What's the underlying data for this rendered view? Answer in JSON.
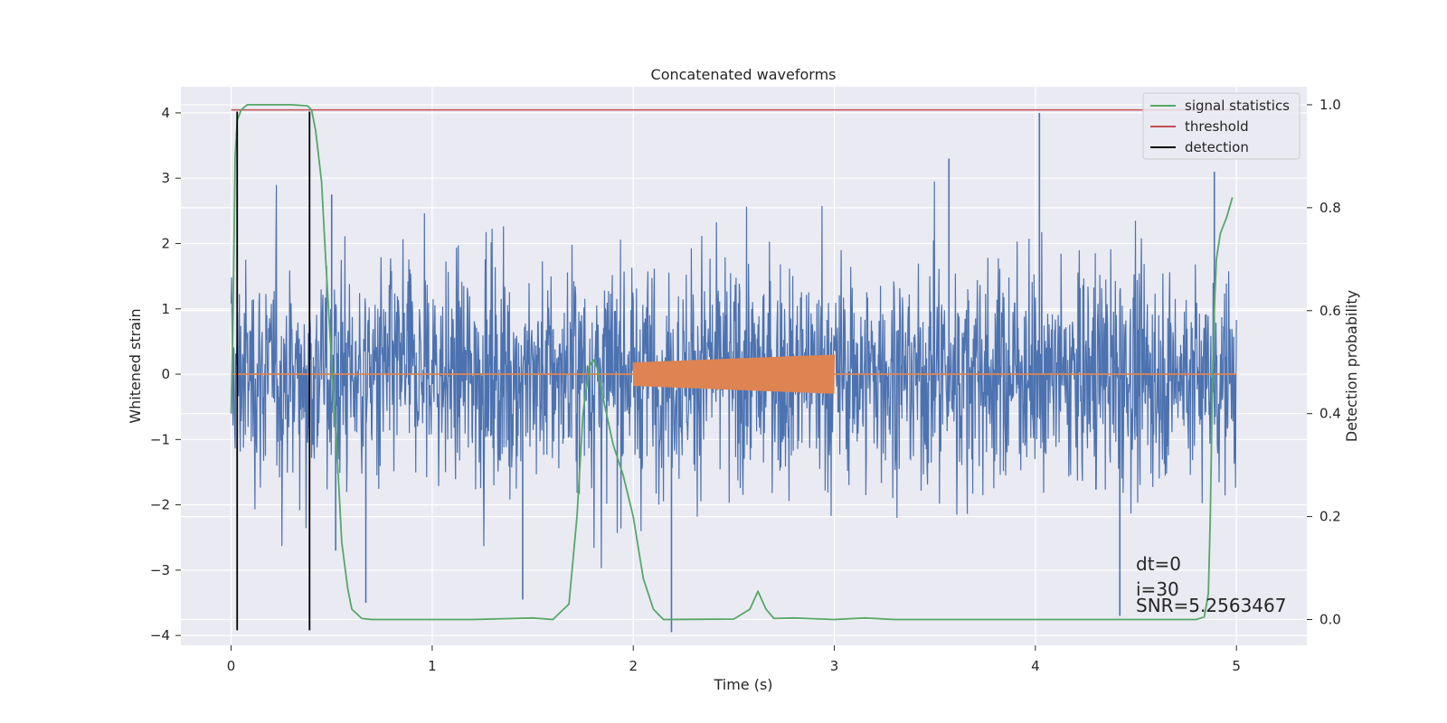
{
  "chart_data": {
    "type": "line",
    "title": "Concatenated waveforms",
    "xlabel": "Time (s)",
    "ylabel": "Whitened strain",
    "y2label": "Detection probability",
    "xlim": [
      -0.25,
      5.35
    ],
    "ylim": [
      -4.15,
      4.4
    ],
    "y2lim": [
      -0.05,
      1.035
    ],
    "xticks": [
      0,
      1,
      2,
      3,
      4,
      5
    ],
    "yticks": [
      4,
      3,
      2,
      1,
      0,
      -1,
      -2,
      -3,
      -4
    ],
    "y2ticks": [
      1.0,
      0.8,
      0.6,
      0.4,
      0.2,
      0.0
    ],
    "grid": true,
    "legend_position": "top-right",
    "legend": [
      {
        "label": "signal statistics",
        "color": "#55a868"
      },
      {
        "label": "threshold",
        "color": "#c44e52"
      },
      {
        "label": "detection",
        "color": "#000000"
      }
    ],
    "series": [
      {
        "key": "strain",
        "axis": "left",
        "kind": "noise",
        "color": "#4c72b0",
        "x_range": [
          0,
          5
        ],
        "typical_sigma": 1.0,
        "notable_spikes": [
          [
            0.5,
            2.75
          ],
          [
            0.52,
            -2.7
          ],
          [
            0.67,
            -3.5
          ],
          [
            1.45,
            -3.45
          ],
          [
            2.19,
            -3.95
          ],
          [
            3.57,
            3.3
          ],
          [
            4.02,
            4.0
          ],
          [
            4.42,
            -3.7
          ],
          [
            4.89,
            3.1
          ]
        ]
      },
      {
        "key": "injected_signal",
        "axis": "left",
        "kind": "chirp",
        "color": "#dd8452",
        "x_range": [
          2.0,
          3.0
        ],
        "amplitude": [
          0.18,
          0.3
        ]
      },
      {
        "key": "signal_statistics",
        "name": "signal statistics",
        "axis": "right",
        "color": "#55a868",
        "x": [
          0.0,
          0.01,
          0.02,
          0.03,
          0.05,
          0.08,
          0.15,
          0.3,
          0.38,
          0.4,
          0.42,
          0.45,
          0.47,
          0.5,
          0.53,
          0.55,
          0.58,
          0.6,
          0.65,
          0.7,
          0.9,
          1.2,
          1.5,
          1.6,
          1.68,
          1.72,
          1.75,
          1.78,
          1.8,
          1.82,
          1.85,
          1.9,
          1.95,
          2.0,
          2.05,
          2.1,
          2.15,
          2.5,
          2.58,
          2.62,
          2.66,
          2.7,
          2.8,
          3.0,
          3.15,
          3.3,
          4.8,
          4.84,
          4.86,
          4.87,
          4.88,
          4.89,
          4.9,
          4.92,
          4.95,
          4.98
        ],
        "y": [
          0.4,
          0.6,
          0.9,
          0.97,
          0.99,
          1.0,
          1.0,
          1.0,
          0.998,
          0.99,
          0.95,
          0.85,
          0.7,
          0.5,
          0.3,
          0.15,
          0.06,
          0.02,
          0.002,
          0.0,
          0.0,
          0.0,
          0.003,
          0.0,
          0.03,
          0.2,
          0.4,
          0.49,
          0.505,
          0.49,
          0.43,
          0.34,
          0.28,
          0.2,
          0.08,
          0.02,
          0.0,
          0.001,
          0.02,
          0.055,
          0.02,
          0.002,
          0.003,
          0.0,
          0.003,
          0.0,
          0.0,
          0.005,
          0.05,
          0.2,
          0.45,
          0.6,
          0.7,
          0.75,
          0.78,
          0.82
        ]
      },
      {
        "key": "threshold",
        "name": "threshold",
        "axis": "right",
        "color": "#c44e52",
        "x": [
          0,
          5
        ],
        "y": [
          0.99,
          0.99
        ]
      },
      {
        "key": "detection",
        "name": "detection",
        "axis": "left",
        "color": "#000000",
        "x": [
          0.03,
          0.39
        ],
        "y_range": [
          -3.92,
          4.02
        ]
      }
    ],
    "annotations": [
      "dt=0",
      "i=30",
      "SNR=5.2563467"
    ]
  }
}
